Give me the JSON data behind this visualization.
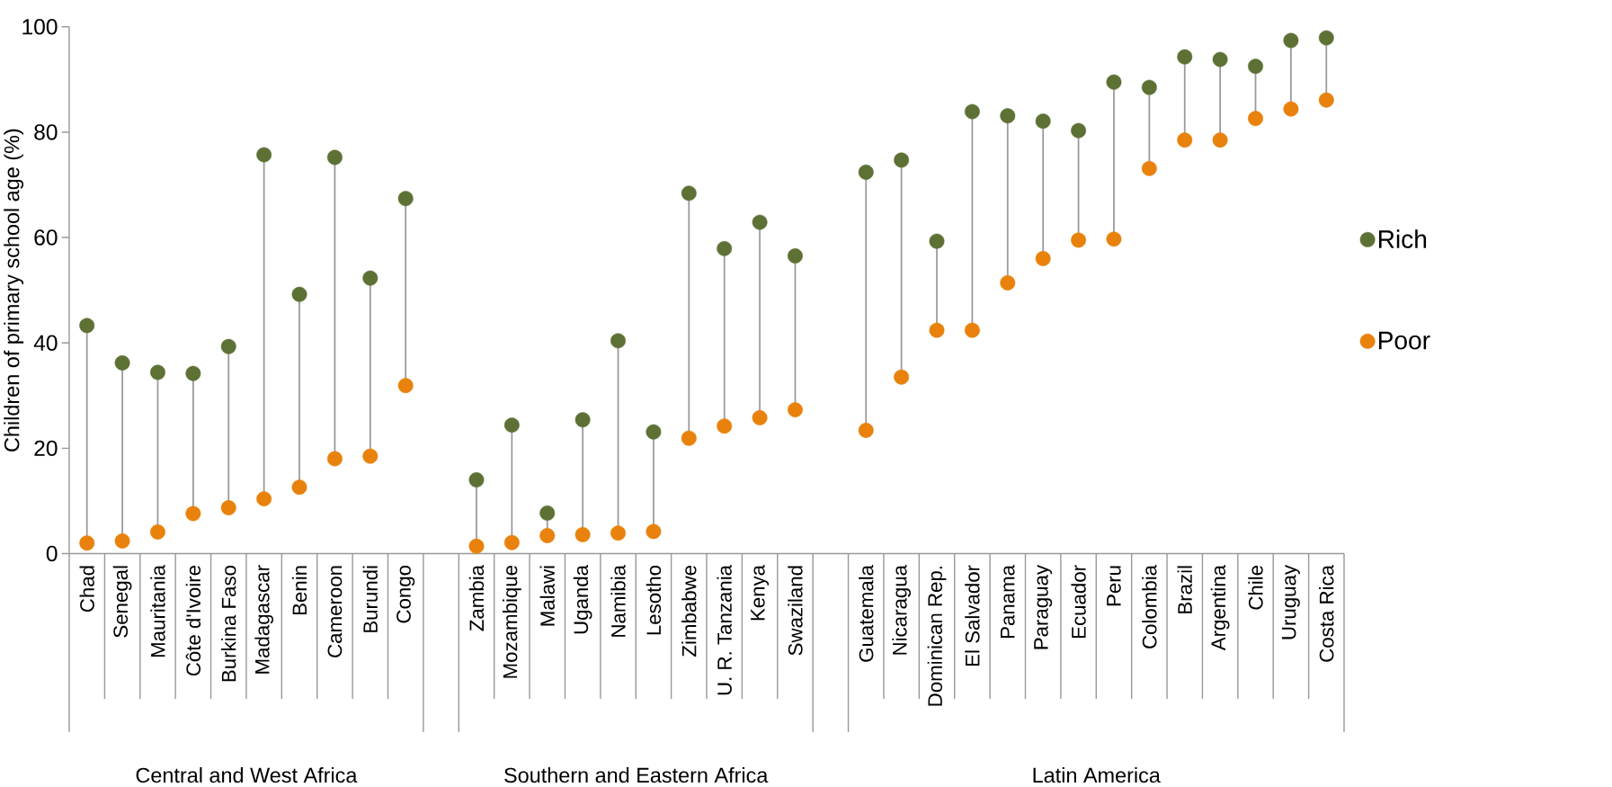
{
  "chart_data": {
    "type": "scatter",
    "ylabel": "Children of primary school age (%)",
    "categories": [
      "Chad",
      "Senegal",
      "Mauritania",
      "Côte d'Ivoire",
      "Burkina Faso",
      "Madagascar",
      "Benin",
      "Cameroon",
      "Burundi",
      "Congo",
      null,
      "Zambia",
      "Mozambique",
      "Malawi",
      "Uganda",
      "Namibia",
      "Lesotho",
      "Zimbabwe",
      "U. R. Tanzania",
      "Kenya",
      "Swaziland",
      null,
      "Guatemala",
      "Nicaragua",
      "Dominican Rep.",
      "El Salvador",
      "Panama",
      "Paraguay",
      "Ecuador",
      "Peru",
      "Colombia",
      "Brazil",
      "Argentina",
      "Chile",
      "Uruguay",
      "Costa Rica"
    ],
    "series": [
      {
        "name": "Rich",
        "color": "#5e7135",
        "values": [
          43.3,
          36.2,
          34.4,
          34.2,
          39.3,
          75.7,
          49.2,
          75.2,
          52.3,
          67.4,
          null,
          14.0,
          24.4,
          7.7,
          25.4,
          40.4,
          23.1,
          68.4,
          57.9,
          62.9,
          56.5,
          null,
          72.4,
          74.7,
          59.3,
          83.9,
          83.1,
          82.1,
          80.3,
          89.5,
          88.5,
          94.3,
          93.8,
          92.5,
          97.4,
          97.9
        ]
      },
      {
        "name": "Poor",
        "color": "#e8820c",
        "values": [
          2.0,
          2.4,
          4.1,
          7.6,
          8.7,
          10.4,
          12.6,
          18.0,
          18.5,
          31.9,
          null,
          1.4,
          2.1,
          3.4,
          3.6,
          3.9,
          4.2,
          21.9,
          24.2,
          25.8,
          27.3,
          null,
          23.4,
          33.5,
          42.4,
          42.4,
          51.4,
          56.0,
          59.5,
          59.7,
          73.1,
          78.5,
          78.5,
          82.6,
          84.4,
          86.1
        ]
      }
    ],
    "ylim": [
      0,
      100
    ],
    "yticks": [
      0,
      20,
      40,
      60,
      80,
      100
    ],
    "legend": "right",
    "annotations": [
      "Central and West Africa",
      "Southern and Eastern Africa",
      "Latin America"
    ]
  }
}
